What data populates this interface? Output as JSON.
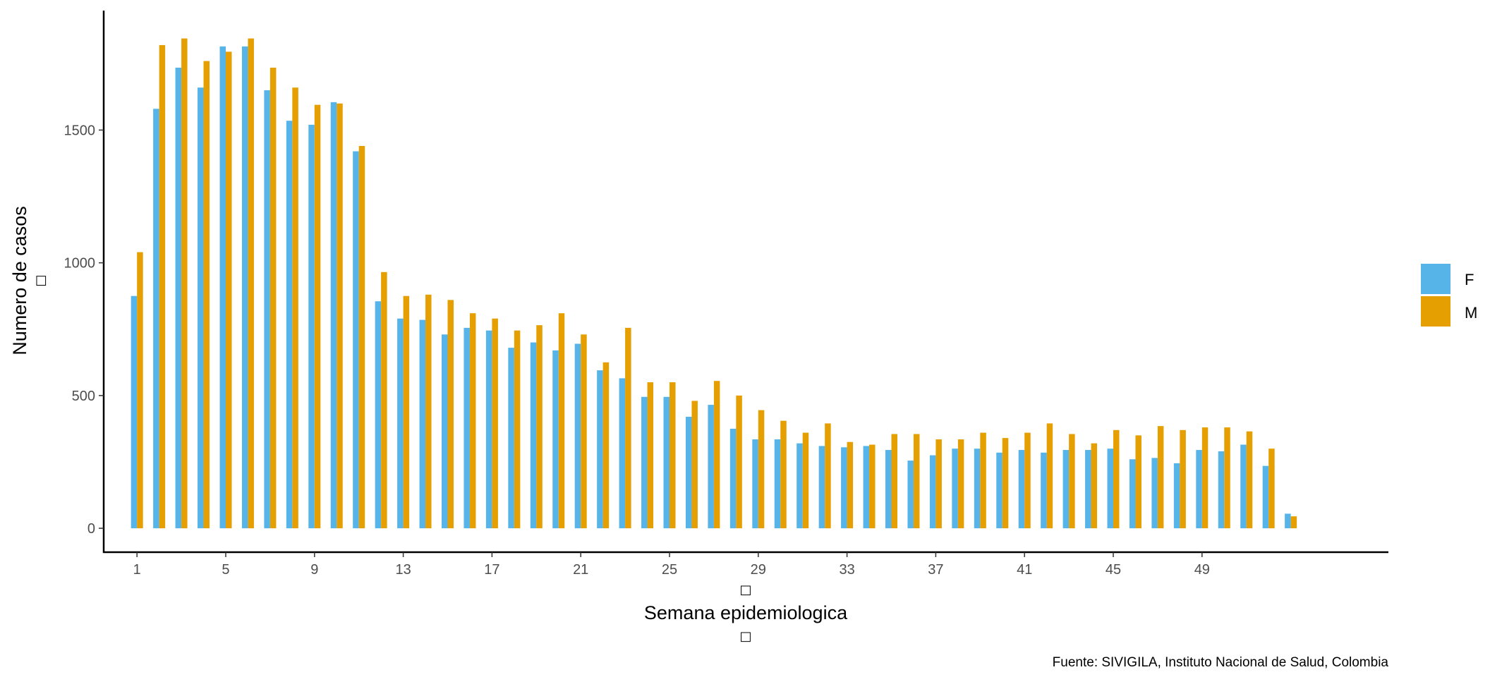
{
  "chart_data": {
    "type": "bar",
    "xlabel": "Semana epidemiologica",
    "ylabel": "Numero de casos",
    "axis_title_glyph": "□",
    "caption": "Fuente: SIVIGILA, Instituto Nacional de Salud, Colombia",
    "ylim": [
      -90,
      1950
    ],
    "y_ticks": [
      0,
      500,
      1000,
      1500
    ],
    "x_ticks": [
      1,
      5,
      9,
      13,
      17,
      21,
      25,
      29,
      33,
      37,
      41,
      45,
      49
    ],
    "xlim": [
      -0.5,
      57.4
    ],
    "grid": false,
    "legend_position": "right",
    "categories": [
      1,
      2,
      3,
      4,
      5,
      6,
      7,
      8,
      9,
      10,
      11,
      12,
      13,
      14,
      15,
      16,
      17,
      18,
      19,
      20,
      21,
      22,
      23,
      24,
      25,
      26,
      27,
      28,
      29,
      30,
      31,
      32,
      33,
      34,
      35,
      36,
      37,
      38,
      39,
      40,
      41,
      42,
      43,
      44,
      45,
      46,
      47,
      48,
      49,
      50,
      51,
      52,
      53
    ],
    "series": [
      {
        "name": "F",
        "color": "#56B4E9",
        "values": [
          875,
          1580,
          1735,
          1660,
          1815,
          1815,
          1650,
          1535,
          1520,
          1605,
          1420,
          855,
          790,
          785,
          730,
          755,
          745,
          680,
          700,
          670,
          695,
          595,
          565,
          495,
          495,
          420,
          465,
          375,
          335,
          335,
          320,
          310,
          305,
          310,
          295,
          255,
          275,
          300,
          300,
          285,
          295,
          285,
          295,
          295,
          300,
          260,
          265,
          245,
          295,
          290,
          315,
          235,
          55
        ]
      },
      {
        "name": "M",
        "color": "#E69F00",
        "values": [
          1040,
          1820,
          1845,
          1760,
          1795,
          1845,
          1735,
          1660,
          1595,
          1600,
          1440,
          965,
          875,
          880,
          860,
          810,
          790,
          745,
          765,
          810,
          730,
          625,
          755,
          550,
          550,
          480,
          555,
          500,
          445,
          405,
          360,
          395,
          325,
          315,
          355,
          355,
          335,
          335,
          360,
          340,
          360,
          395,
          355,
          320,
          370,
          350,
          385,
          370,
          380,
          380,
          365,
          300,
          45
        ]
      }
    ]
  }
}
